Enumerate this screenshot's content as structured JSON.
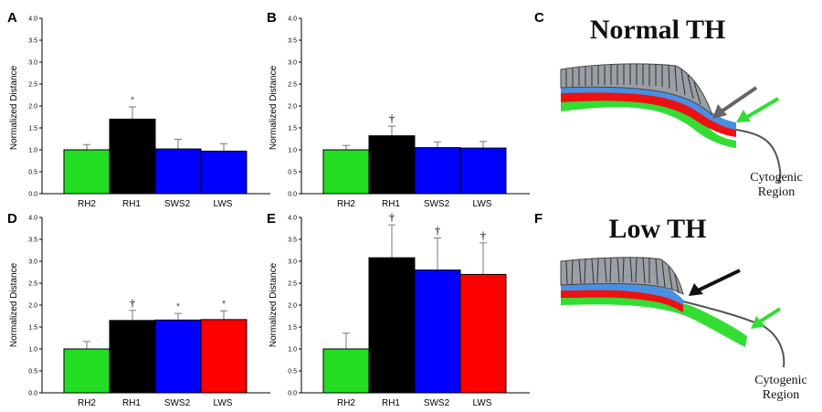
{
  "chart_data": [
    {
      "type": "bar",
      "panel": "A",
      "title": "",
      "xlabel": "",
      "ylabel": "Normalized Distance",
      "ylim": [
        0,
        4
      ],
      "yticks": [
        "0.0",
        "0.5",
        "1.0",
        "1.5",
        "2.0",
        "2.5",
        "3.0",
        "3.5",
        "4.0"
      ],
      "categories": [
        "RH2",
        "RH1",
        "SWS2",
        "LWS"
      ],
      "values": [
        1.0,
        1.7,
        1.02,
        0.97
      ],
      "errors": [
        0.12,
        0.28,
        0.22,
        0.17
      ],
      "colors": [
        "#22dd22",
        "#000000",
        "#0000ff",
        "#0000ff"
      ],
      "significance": [
        "",
        "*",
        "",
        ""
      ],
      "grid": false
    },
    {
      "type": "bar",
      "panel": "B",
      "title": "",
      "xlabel": "",
      "ylabel": "Normalized Distance",
      "ylim": [
        0,
        4
      ],
      "yticks": [
        "0.0",
        "0.5",
        "1.0",
        "1.5",
        "2.0",
        "2.5",
        "3.0",
        "3.5",
        "4.0"
      ],
      "categories": [
        "RH2",
        "RH1",
        "SWS2",
        "LWS"
      ],
      "values": [
        1.0,
        1.32,
        1.05,
        1.04
      ],
      "errors": [
        0.1,
        0.22,
        0.13,
        0.15
      ],
      "colors": [
        "#22dd22",
        "#000000",
        "#0000ff",
        "#0000ff"
      ],
      "significance": [
        "",
        "†",
        "",
        ""
      ],
      "grid": false
    },
    {
      "type": "bar",
      "panel": "D",
      "title": "",
      "xlabel": "",
      "ylabel": "Normalized Distance",
      "ylim": [
        0,
        4
      ],
      "yticks": [
        "0.0",
        "0.5",
        "1.0",
        "1.5",
        "2.0",
        "2.5",
        "3.0",
        "3.5",
        "4.0"
      ],
      "categories": [
        "RH2",
        "RH1",
        "SWS2",
        "LWS"
      ],
      "values": [
        1.0,
        1.65,
        1.66,
        1.67
      ],
      "errors": [
        0.17,
        0.23,
        0.15,
        0.2
      ],
      "colors": [
        "#22dd22",
        "#000000",
        "#0000ff",
        "#ff0000"
      ],
      "significance": [
        "",
        "†",
        "*",
        "*"
      ],
      "grid": false
    },
    {
      "type": "bar",
      "panel": "E",
      "title": "",
      "xlabel": "",
      "ylabel": "Normalized Distance",
      "ylim": [
        0,
        4
      ],
      "yticks": [
        "0.0",
        "0.5",
        "1.0",
        "1.5",
        "2.0",
        "2.5",
        "3.0",
        "3.5",
        "4.0"
      ],
      "categories": [
        "RH2",
        "RH1",
        "SWS2",
        "LWS"
      ],
      "values": [
        1.0,
        3.08,
        2.8,
        2.7
      ],
      "errors": [
        0.36,
        0.75,
        0.73,
        0.72
      ],
      "colors": [
        "#22dd22",
        "#000000",
        "#0000ff",
        "#ff0000"
      ],
      "significance": [
        "",
        "†",
        "†",
        "†"
      ],
      "grid": false
    }
  ],
  "diagrams": {
    "normal": {
      "panel": "C",
      "title": "Normal TH",
      "region_line1": "Cytogenic",
      "region_line2": "Region"
    },
    "low": {
      "panel": "F",
      "title": "Low TH",
      "region_line1": "Cytogenic",
      "region_line2": "Region"
    }
  }
}
